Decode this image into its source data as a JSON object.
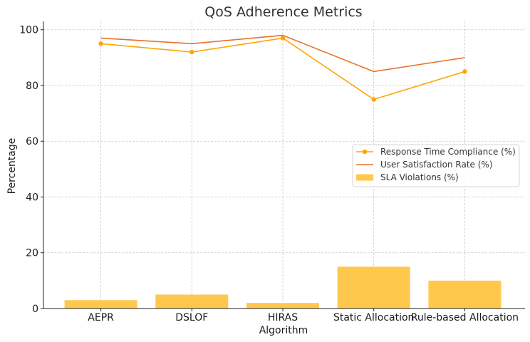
{
  "chart_data": {
    "type": "bar",
    "title": "QoS Adherence Metrics",
    "xlabel": "Algorithm",
    "ylabel": "Percentage",
    "categories": [
      "AEPR",
      "DSLOF",
      "HIRAS",
      "Static Allocation",
      "Rule-based Allocation"
    ],
    "ylim": [
      0,
      103
    ],
    "yticks": [
      0,
      20,
      40,
      60,
      80,
      100
    ],
    "grid": true,
    "legend_position": "center-right",
    "series": [
      {
        "name": "Response Time Compliance (%)",
        "kind": "line",
        "marker": "circle",
        "color": "#FFA500",
        "values": [
          95,
          92,
          97,
          75,
          85
        ]
      },
      {
        "name": "User Satisfaction Rate (%)",
        "kind": "line",
        "marker": "none",
        "color": "#E8702A",
        "values": [
          97,
          95,
          98,
          85,
          90
        ]
      },
      {
        "name": "SLA Violations (%)",
        "kind": "bar",
        "color": "#FFC84D",
        "values": [
          3,
          5,
          2,
          15,
          10
        ]
      }
    ]
  }
}
